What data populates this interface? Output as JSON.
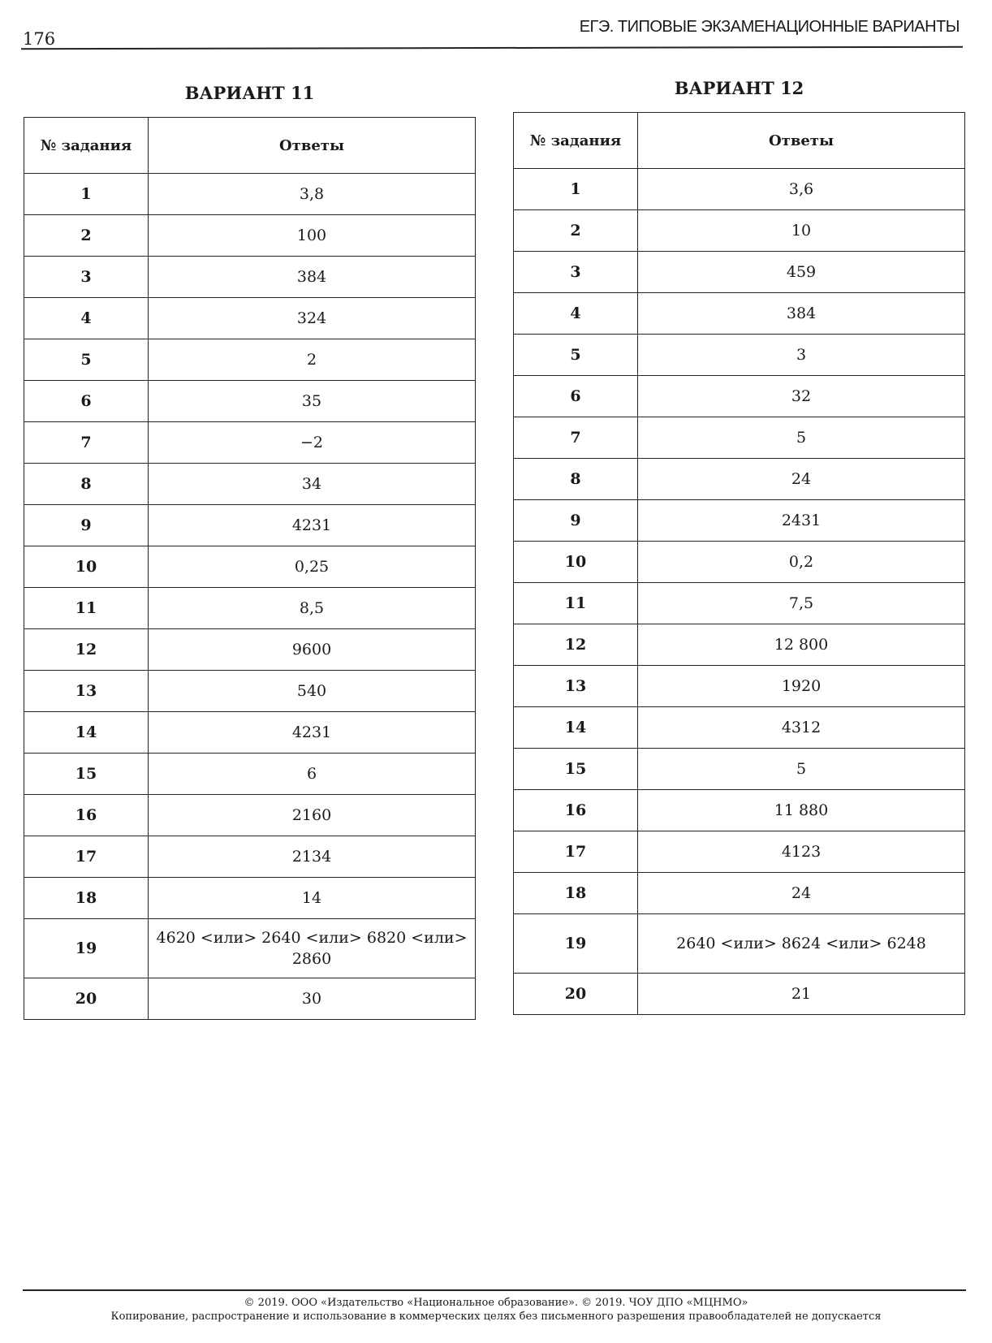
{
  "header": {
    "page_number": "176",
    "running_title": "ЕГЭ. ТИПОВЫЕ ЭКЗАМЕНАЦИОННЫЕ ВАРИАНТЫ"
  },
  "variants": [
    {
      "title": "ВАРИАНТ 11",
      "columns": [
        "№ задания",
        "Ответы"
      ],
      "rows": [
        [
          "1",
          "3,8"
        ],
        [
          "2",
          "100"
        ],
        [
          "3",
          "384"
        ],
        [
          "4",
          "324"
        ],
        [
          "5",
          "2"
        ],
        [
          "6",
          "35"
        ],
        [
          "7",
          "−2"
        ],
        [
          "8",
          "34"
        ],
        [
          "9",
          "4231"
        ],
        [
          "10",
          "0,25"
        ],
        [
          "11",
          "8,5"
        ],
        [
          "12",
          "9600"
        ],
        [
          "13",
          "540"
        ],
        [
          "14",
          "4231"
        ],
        [
          "15",
          "6"
        ],
        [
          "16",
          "2160"
        ],
        [
          "17",
          "2134"
        ],
        [
          "18",
          "14"
        ],
        [
          "19",
          "4620 <или> 2640 <или> 6820 <или> 2860"
        ],
        [
          "20",
          "30"
        ]
      ]
    },
    {
      "title": "ВАРИАНТ 12",
      "columns": [
        "№ задания",
        "Ответы"
      ],
      "rows": [
        [
          "1",
          "3,6"
        ],
        [
          "2",
          "10"
        ],
        [
          "3",
          "459"
        ],
        [
          "4",
          "384"
        ],
        [
          "5",
          "3"
        ],
        [
          "6",
          "32"
        ],
        [
          "7",
          "5"
        ],
        [
          "8",
          "24"
        ],
        [
          "9",
          "2431"
        ],
        [
          "10",
          "0,2"
        ],
        [
          "11",
          "7,5"
        ],
        [
          "12",
          "12 800"
        ],
        [
          "13",
          "1920"
        ],
        [
          "14",
          "4312"
        ],
        [
          "15",
          "5"
        ],
        [
          "16",
          "11 880"
        ],
        [
          "17",
          "4123"
        ],
        [
          "18",
          "24"
        ],
        [
          "19",
          "2640 <или> 8624 <или> 6248"
        ],
        [
          "20",
          "21"
        ]
      ]
    }
  ],
  "footer": {
    "copyright": "© 2019. ООО «Издательство «Национальное образование». © 2019. ЧОУ ДПО «МЦНМО»",
    "notice": "Копирование, распространение и использование в коммерческих целях без письменного разрешения правообладателей не допускается"
  }
}
